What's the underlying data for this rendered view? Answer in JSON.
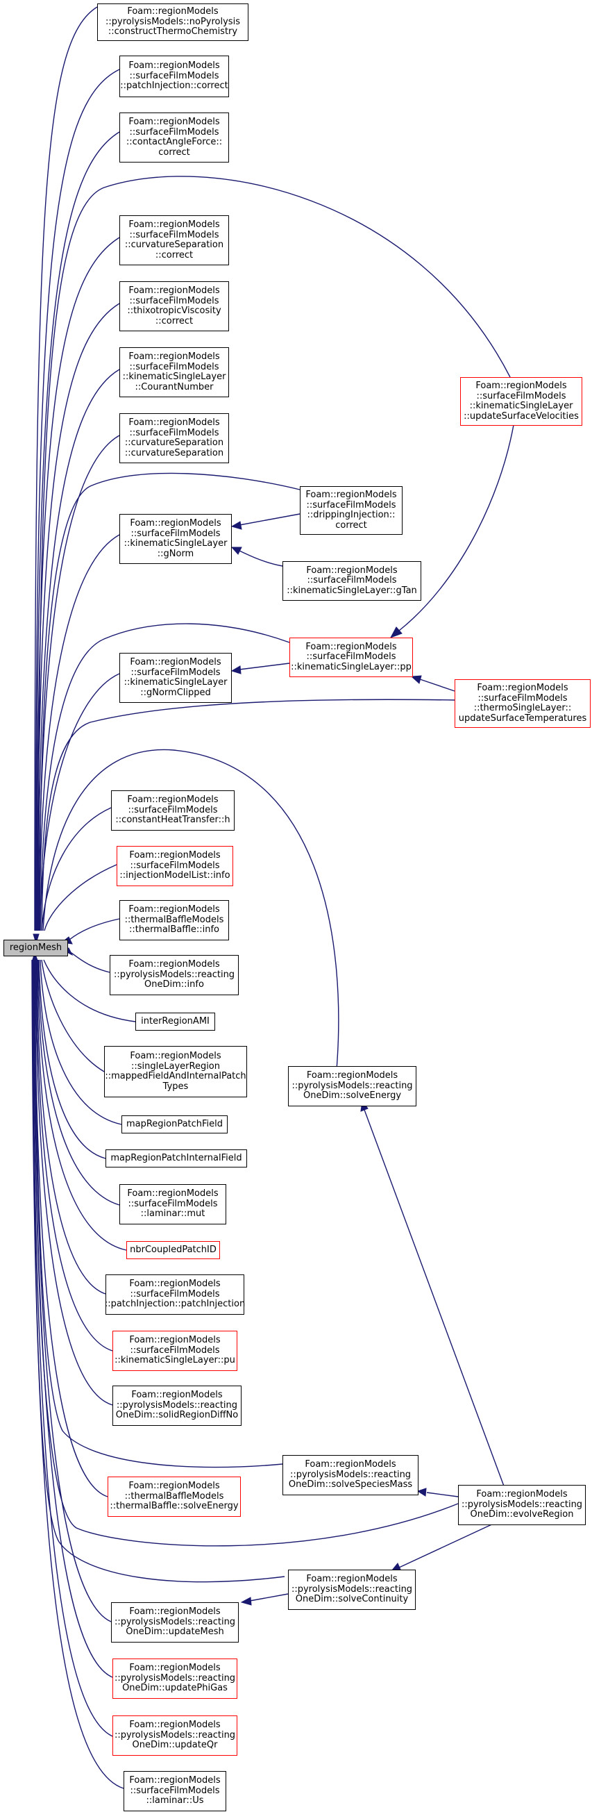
{
  "graph": {
    "root": "regionMesh",
    "colors": {
      "edge": "#191970",
      "root_fill": "#bfbfbf",
      "incomplete_border": "#ff0000",
      "node_border": "#000000"
    },
    "nodes": [
      {
        "id": "root",
        "label": "regionMesh",
        "style": "root"
      },
      {
        "id": "n1",
        "label": "Foam::regionModels\n::pyrolysisModels::noPyrolysis\n::constructThermoChemistry",
        "style": "normal"
      },
      {
        "id": "n2",
        "label": "Foam::regionModels\n::surfaceFilmModels\n::patchInjection::correct",
        "style": "normal"
      },
      {
        "id": "n3",
        "label": "Foam::regionModels\n::surfaceFilmModels\n::contactAngleForce::\ncorrect",
        "style": "normal"
      },
      {
        "id": "n4",
        "label": "Foam::regionModels\n::surfaceFilmModels\n::curvatureSeparation\n::correct",
        "style": "normal"
      },
      {
        "id": "n5",
        "label": "Foam::regionModels\n::surfaceFilmModels\n::thixotropicViscosity\n::correct",
        "style": "normal"
      },
      {
        "id": "n6",
        "label": "Foam::regionModels\n::surfaceFilmModels\n::kinematicSingleLayer\n::CourantNumber",
        "style": "normal"
      },
      {
        "id": "n7",
        "label": "Foam::regionModels\n::surfaceFilmModels\n::curvatureSeparation\n::curvatureSeparation",
        "style": "normal"
      },
      {
        "id": "n8",
        "label": "Foam::regionModels\n::surfaceFilmModels\n::kinematicSingleLayer\n::gNorm",
        "style": "normal"
      },
      {
        "id": "n9",
        "label": "Foam::regionModels\n::surfaceFilmModels\n::kinematicSingleLayer\n::gNormClipped",
        "style": "normal"
      },
      {
        "id": "n10",
        "label": "Foam::regionModels\n::surfaceFilmModels\n::constantHeatTransfer::h",
        "style": "normal"
      },
      {
        "id": "n11",
        "label": "Foam::regionModels\n::surfaceFilmModels\n::injectionModelList::info",
        "style": "red"
      },
      {
        "id": "n12",
        "label": "Foam::regionModels\n::thermalBaffleModels\n::thermalBaffle::info",
        "style": "normal"
      },
      {
        "id": "n13",
        "label": "Foam::regionModels\n::pyrolysisModels::reacting\nOneDim::info",
        "style": "normal"
      },
      {
        "id": "n14",
        "label": "interRegionAMI",
        "style": "normal"
      },
      {
        "id": "n15",
        "label": "Foam::regionModels\n::singleLayerRegion\n::mappedFieldAndInternalPatch\nTypes",
        "style": "normal"
      },
      {
        "id": "n16",
        "label": "mapRegionPatchField",
        "style": "normal"
      },
      {
        "id": "n17",
        "label": "mapRegionPatchInternalField",
        "style": "normal"
      },
      {
        "id": "n18",
        "label": "Foam::regionModels\n::surfaceFilmModels\n::laminar::mut",
        "style": "normal"
      },
      {
        "id": "n19",
        "label": "nbrCoupledPatchID",
        "style": "red"
      },
      {
        "id": "n20",
        "label": "Foam::regionModels\n::surfaceFilmModels\n::patchInjection::patchInjection",
        "style": "normal"
      },
      {
        "id": "n21",
        "label": "Foam::regionModels\n::surfaceFilmModels\n::kinematicSingleLayer::pu",
        "style": "red"
      },
      {
        "id": "n22",
        "label": "Foam::regionModels\n::pyrolysisModels::reacting\nOneDim::solidRegionDiffNo",
        "style": "normal"
      },
      {
        "id": "n23",
        "label": "Foam::regionModels\n::thermalBaffleModels\n::thermalBaffle::solveEnergy",
        "style": "red"
      },
      {
        "id": "n24",
        "label": "Foam::regionModels\n::pyrolysisModels::reacting\nOneDim::updateMesh",
        "style": "normal"
      },
      {
        "id": "n25",
        "label": "Foam::regionModels\n::pyrolysisModels::reacting\nOneDim::updatePhiGas",
        "style": "red"
      },
      {
        "id": "n26",
        "label": "Foam::regionModels\n::pyrolysisModels::reacting\nOneDim::updateQr",
        "style": "red"
      },
      {
        "id": "n27",
        "label": "Foam::regionModels\n::surfaceFilmModels\n::laminar::Us",
        "style": "normal"
      },
      {
        "id": "m1",
        "label": "Foam::regionModels\n::surfaceFilmModels\n::drippingInjection::\ncorrect",
        "style": "normal"
      },
      {
        "id": "m2",
        "label": "Foam::regionModels\n::surfaceFilmModels\n::kinematicSingleLayer::gTan",
        "style": "normal"
      },
      {
        "id": "m3",
        "label": "Foam::regionModels\n::surfaceFilmModels\n::kinematicSingleLayer::pp",
        "style": "red"
      },
      {
        "id": "m4",
        "label": "Foam::regionModels\n::pyrolysisModels::reacting\nOneDim::solveEnergy",
        "style": "normal"
      },
      {
        "id": "m5",
        "label": "Foam::regionModels\n::pyrolysisModels::reacting\nOneDim::solveSpeciesMass",
        "style": "normal"
      },
      {
        "id": "m6",
        "label": "Foam::regionModels\n::pyrolysisModels::reacting\nOneDim::solveContinuity",
        "style": "normal"
      },
      {
        "id": "r1",
        "label": "Foam::regionModels\n::surfaceFilmModels\n::kinematicSingleLayer\n::updateSurfaceVelocities",
        "style": "red"
      },
      {
        "id": "r2",
        "label": "Foam::regionModels\n::surfaceFilmModels\n::thermoSingleLayer::\nupdateSurfaceTemperatures",
        "style": "red"
      },
      {
        "id": "r3",
        "label": "Foam::regionModels\n::pyrolysisModels::reacting\nOneDim::evolveRegion",
        "style": "normal"
      }
    ],
    "edges": [
      [
        "n1",
        "root"
      ],
      [
        "n2",
        "root"
      ],
      [
        "n3",
        "root"
      ],
      [
        "n4",
        "root"
      ],
      [
        "n5",
        "root"
      ],
      [
        "n6",
        "root"
      ],
      [
        "n7",
        "root"
      ],
      [
        "n8",
        "root"
      ],
      [
        "n9",
        "root"
      ],
      [
        "n10",
        "root"
      ],
      [
        "n11",
        "root"
      ],
      [
        "n12",
        "root"
      ],
      [
        "n13",
        "root"
      ],
      [
        "n14",
        "root"
      ],
      [
        "n15",
        "root"
      ],
      [
        "n16",
        "root"
      ],
      [
        "n17",
        "root"
      ],
      [
        "n18",
        "root"
      ],
      [
        "n19",
        "root"
      ],
      [
        "n20",
        "root"
      ],
      [
        "n21",
        "root"
      ],
      [
        "n22",
        "root"
      ],
      [
        "n23",
        "root"
      ],
      [
        "n24",
        "root"
      ],
      [
        "n25",
        "root"
      ],
      [
        "n26",
        "root"
      ],
      [
        "n27",
        "root"
      ],
      [
        "r1",
        "root"
      ],
      [
        "m1",
        "root"
      ],
      [
        "m1",
        "n8"
      ],
      [
        "m2",
        "root"
      ],
      [
        "m2",
        "n8"
      ],
      [
        "m3",
        "root"
      ],
      [
        "m3",
        "n9"
      ],
      [
        "r1",
        "m3"
      ],
      [
        "r2",
        "root"
      ],
      [
        "r2",
        "m3"
      ],
      [
        "m4",
        "root"
      ],
      [
        "r3",
        "m4"
      ],
      [
        "m5",
        "root"
      ],
      [
        "r3",
        "m5"
      ],
      [
        "r3",
        "root"
      ],
      [
        "m6",
        "root"
      ],
      [
        "r3",
        "m6"
      ],
      [
        "m6",
        "n24"
      ]
    ]
  }
}
